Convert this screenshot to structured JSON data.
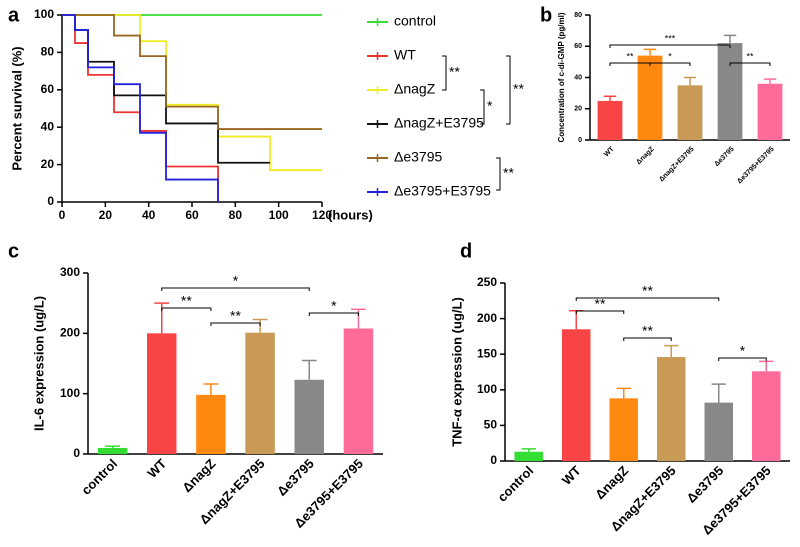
{
  "chart_data": [
    {
      "type": "step",
      "label": "a",
      "ylabel": "Percent survival (%)",
      "xlabel": "(hours)",
      "x": [
        0,
        6,
        12,
        24,
        36,
        48,
        72,
        96,
        120
      ],
      "xlim": [
        0,
        120
      ],
      "xticks": [
        0,
        20,
        40,
        60,
        80,
        100,
        120
      ],
      "ylim": [
        0,
        100
      ],
      "yticks": [
        0,
        20,
        40,
        60,
        80,
        100
      ],
      "series": [
        {
          "name": "control",
          "color": "#33dd33",
          "values": [
            100,
            100,
            100,
            100,
            100,
            100,
            100,
            100,
            100
          ]
        },
        {
          "name": "WT",
          "color": "#ee3333",
          "values": [
            100,
            85,
            68,
            48,
            38,
            19,
            0,
            null,
            null
          ]
        },
        {
          "name": "ΔnagZ",
          "color": "#eeee22",
          "values": [
            100,
            100,
            100,
            100,
            86,
            52,
            35,
            17,
            17
          ]
        },
        {
          "name": "ΔnagZ+E3795",
          "color": "#111111",
          "values": [
            100,
            92,
            75,
            57,
            57,
            42,
            21,
            21,
            null
          ]
        },
        {
          "name": "Δe3795",
          "color": "#996622",
          "values": [
            100,
            100,
            100,
            89,
            78,
            51,
            39,
            39,
            39
          ]
        },
        {
          "name": "Δe3795+E3795",
          "color": "#2222dd",
          "values": [
            100,
            92,
            72,
            63,
            37,
            12,
            0,
            null,
            null
          ]
        }
      ],
      "annotations": [
        "**",
        "*",
        "**",
        "**"
      ]
    },
    {
      "type": "bar",
      "label": "b",
      "ylabel": "Concentration of c-di-GMP (pg/ml)",
      "categories": [
        "WT",
        "ΔnagZ",
        "ΔnagZ+E3795",
        "Δe3795",
        "Δe3795+E3795"
      ],
      "values": [
        25,
        54,
        35,
        62,
        36
      ],
      "errors": [
        3,
        4,
        5,
        5,
        3
      ],
      "colors": [
        "#f84444",
        "#ff8811",
        "#c89a55",
        "#888888",
        "#ff6b98"
      ],
      "ylim": [
        0,
        80
      ],
      "yticks": [
        0,
        20,
        40,
        60,
        80
      ],
      "annotations": [
        "**",
        "*",
        "***",
        "**"
      ]
    },
    {
      "type": "bar",
      "label": "c",
      "ylabel": "IL-6 expression (ug/L)",
      "categories": [
        "control",
        "WT",
        "ΔnagZ",
        "ΔnagZ+E3795",
        "Δe3795",
        "Δe3795+E3795"
      ],
      "values": [
        10,
        200,
        98,
        201,
        123,
        208
      ],
      "errors": [
        3,
        50,
        18,
        22,
        32,
        32
      ],
      "colors": [
        "#33dd33",
        "#f84444",
        "#ff8811",
        "#c89a55",
        "#888888",
        "#ff6b98"
      ],
      "ylim": [
        0,
        300
      ],
      "yticks": [
        0,
        100,
        200,
        300
      ],
      "annotations": [
        "**",
        "**",
        "*",
        "*"
      ]
    },
    {
      "type": "bar",
      "label": "d",
      "ylabel": "TNF-α expression (ug/L)",
      "categories": [
        "control",
        "WT",
        "ΔnagZ",
        "ΔnagZ+E3795",
        "Δe3795",
        "Δe3795+E3795"
      ],
      "values": [
        13,
        185,
        88,
        146,
        82,
        126
      ],
      "errors": [
        4,
        26,
        14,
        16,
        26,
        14
      ],
      "colors": [
        "#33dd33",
        "#f84444",
        "#ff8811",
        "#c89a55",
        "#888888",
        "#ff6b98"
      ],
      "ylim": [
        0,
        250
      ],
      "yticks": [
        0,
        50,
        100,
        150,
        200,
        250
      ],
      "annotations": [
        "**",
        "**",
        "**",
        "*"
      ]
    }
  ]
}
